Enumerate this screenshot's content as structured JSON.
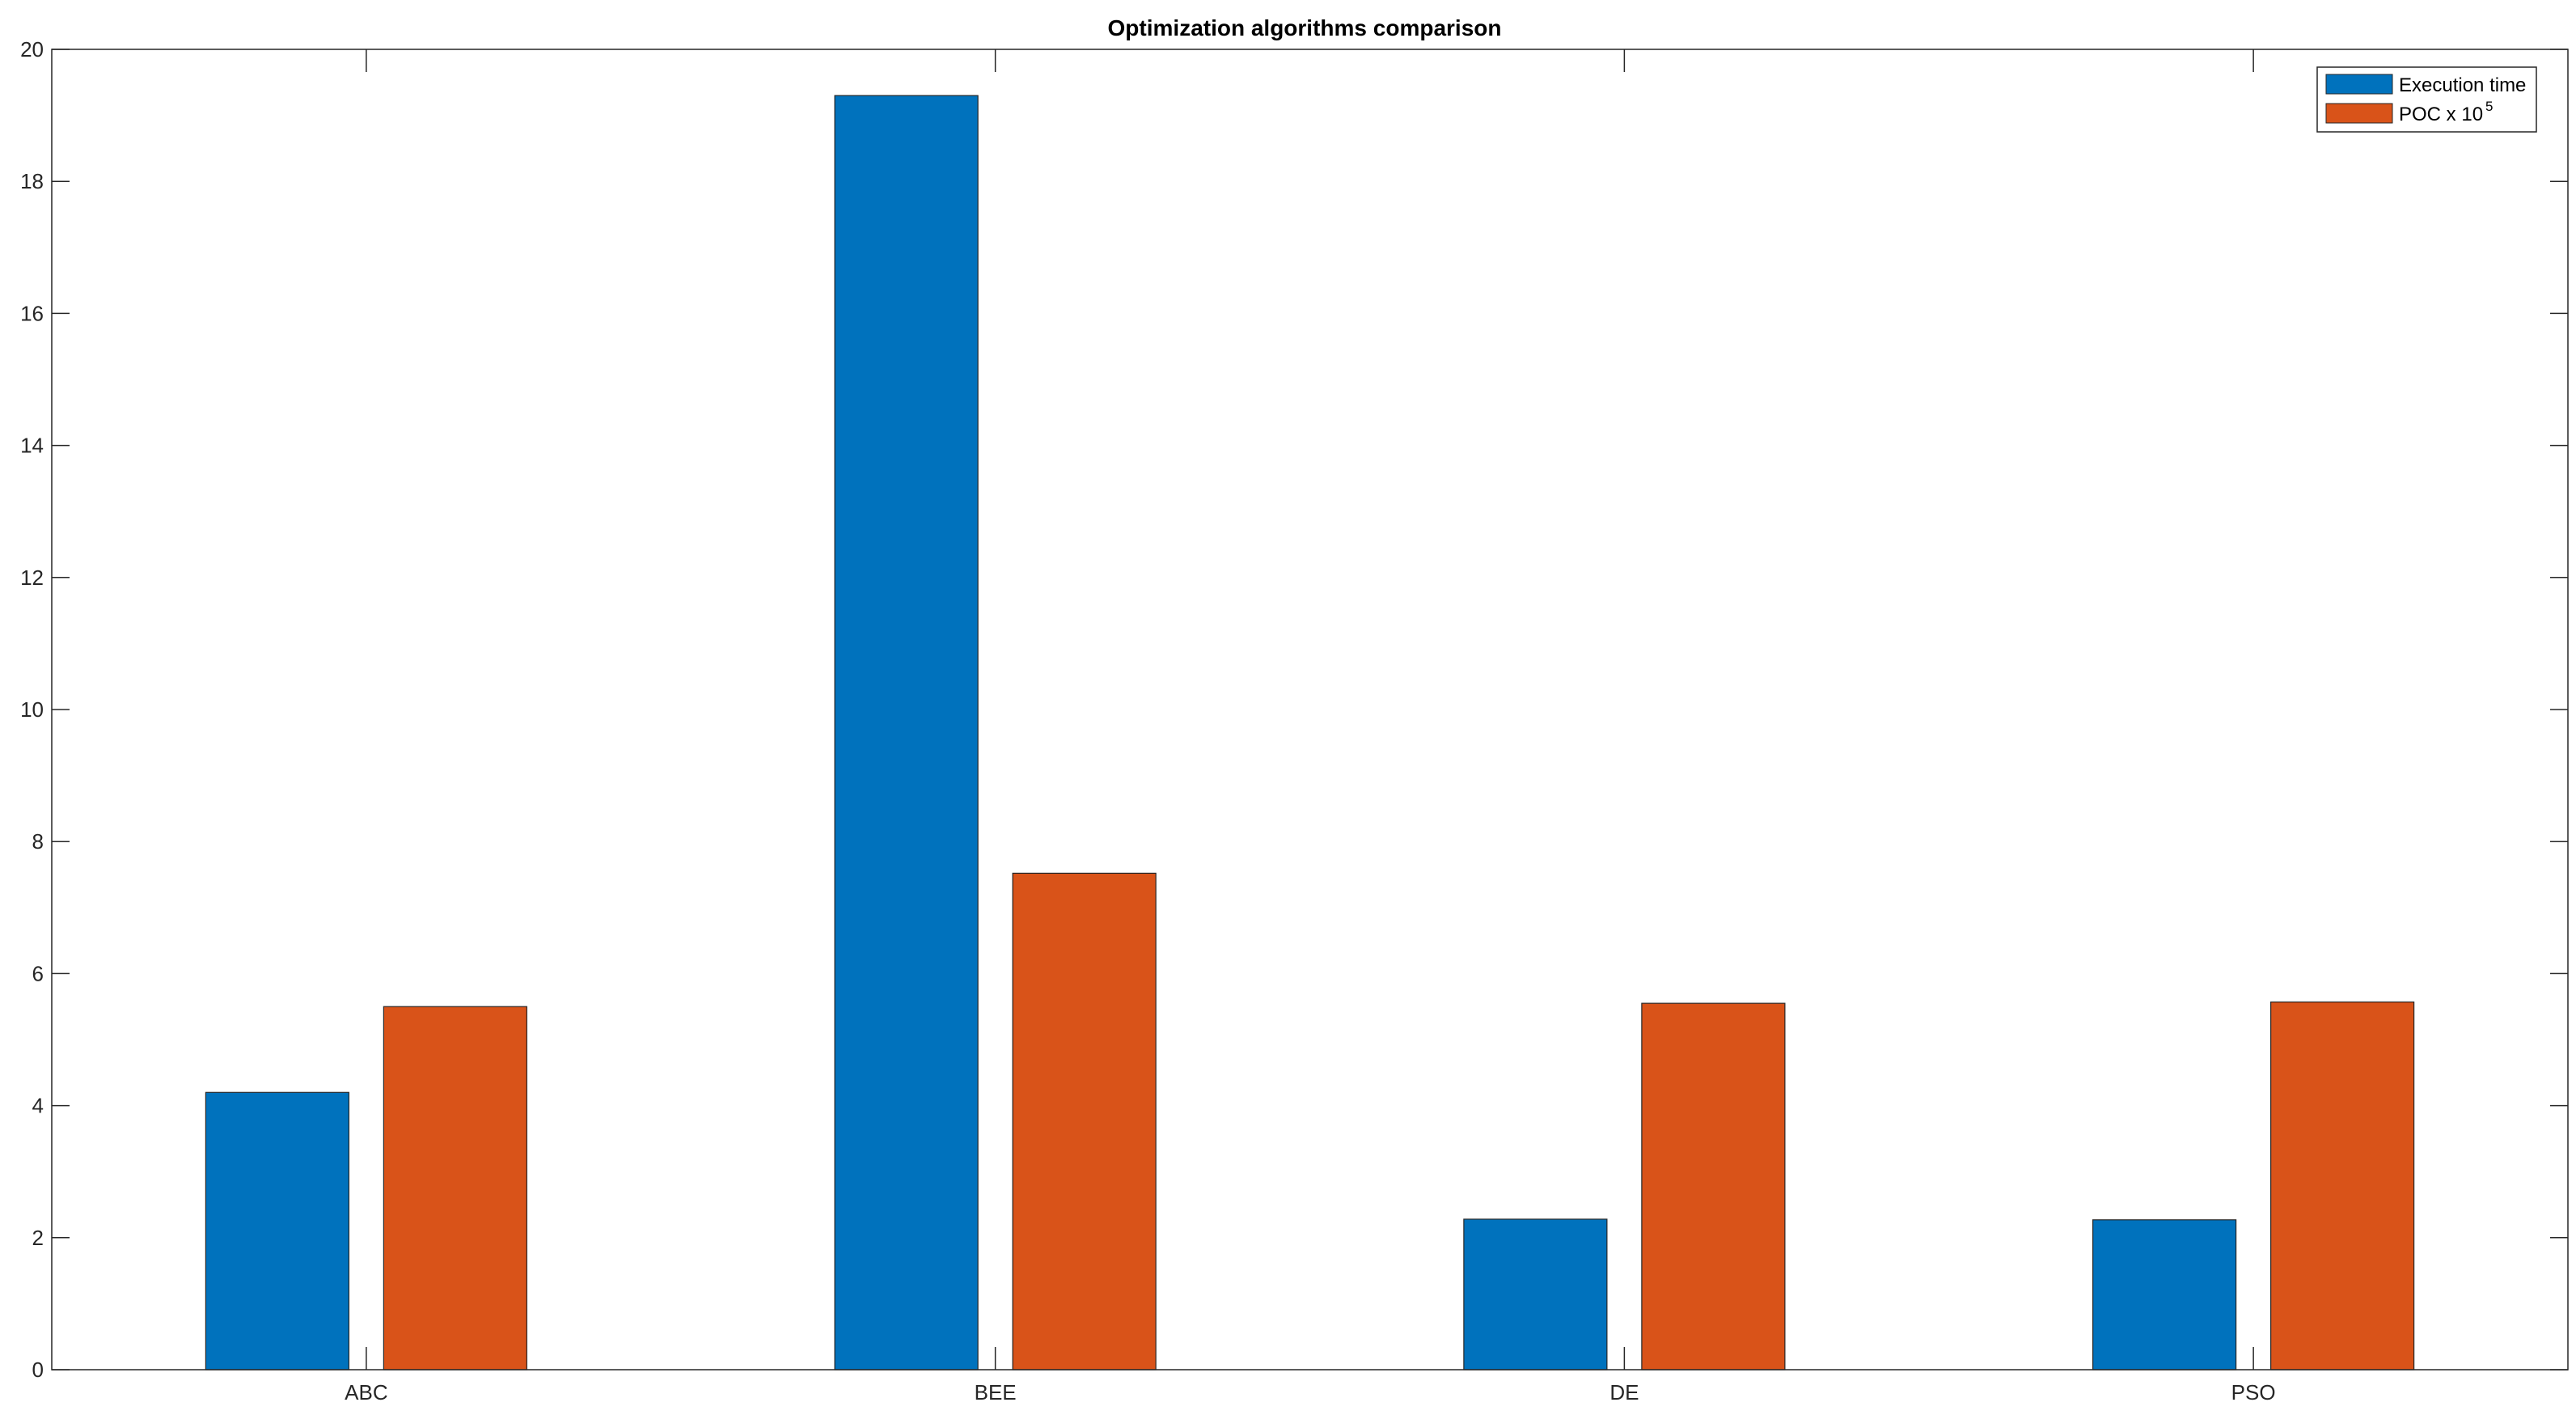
{
  "chart_data": {
    "type": "bar",
    "title": "Optimization algorithms comparison",
    "xlabel": "",
    "ylabel": "",
    "categories": [
      "ABC",
      "BEE",
      "DE",
      "PSO"
    ],
    "series": [
      {
        "name": "Execution time",
        "color": "#0072BD",
        "values": [
          4.2,
          19.3,
          2.28,
          2.27
        ]
      },
      {
        "name": "POC x 10",
        "name_superscript": "5",
        "color": "#D95319",
        "values": [
          5.5,
          7.52,
          5.55,
          5.57
        ]
      }
    ],
    "ylim": [
      0,
      20
    ],
    "yticks": [
      "0",
      "2",
      "4",
      "6",
      "8",
      "10",
      "12",
      "14",
      "16",
      "18",
      "20"
    ],
    "grid": false,
    "legend_position": "top-right",
    "axis_color": "#262626"
  }
}
